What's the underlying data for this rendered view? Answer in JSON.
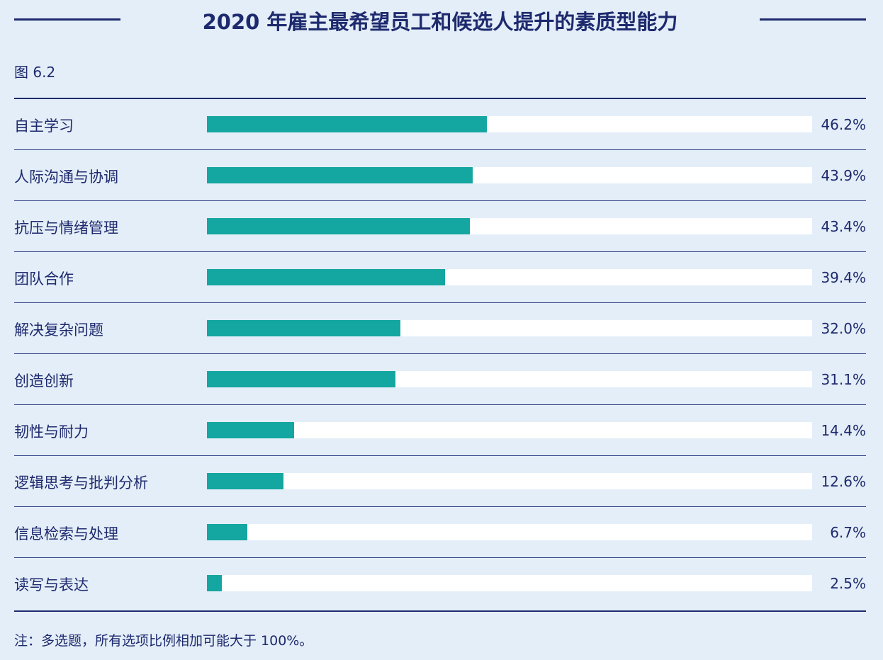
{
  "colors": {
    "bar": "#14a6a0",
    "track": "#ffffff",
    "text": "#1e2a6e",
    "background": "#e4eef8"
  },
  "chart_data": {
    "type": "bar",
    "orientation": "horizontal",
    "title": "2020 年雇主最希望员工和候选人提升的素质型能力",
    "figure_label": "图 6.2",
    "unit": "%",
    "xlim": [
      0,
      100
    ],
    "categories": [
      "自主学习",
      "人际沟通与协调",
      "抗压与情绪管理",
      "团队合作",
      "解决复杂问题",
      "创造创新",
      "韧性与耐力",
      "逻辑思考与批判分析",
      "信息检索与处理",
      "读写与表达"
    ],
    "values": [
      46.2,
      43.9,
      43.4,
      39.4,
      32.0,
      31.1,
      14.4,
      12.6,
      6.7,
      2.5
    ],
    "value_labels": [
      "46.2%",
      "43.9%",
      "43.4%",
      "39.4%",
      "32.0%",
      "31.1%",
      "14.4%",
      "12.6%",
      "6.7%",
      "2.5%"
    ],
    "note": "注：多选题，所有选项比例相加可能大于 100%。"
  }
}
